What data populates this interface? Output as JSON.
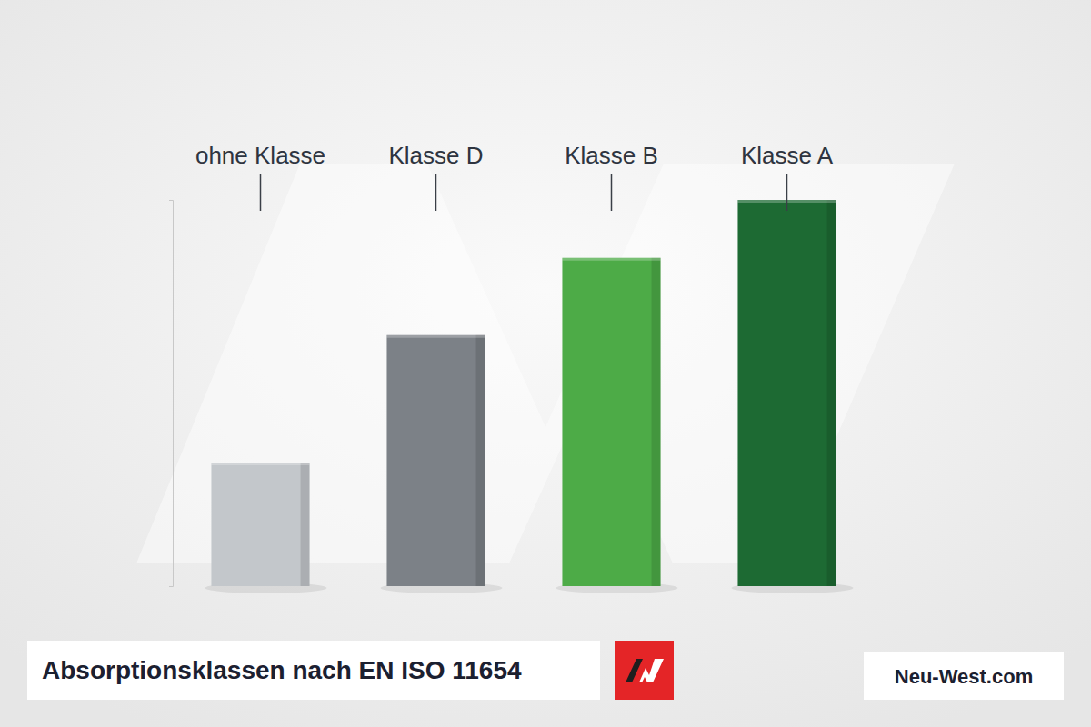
{
  "chart_data": {
    "type": "bar",
    "title": "Absorptionsklassen nach EN ISO 11654",
    "source": "Neu-West.com",
    "categories": [
      "ohne Klasse",
      "Klasse D",
      "Klasse B",
      "Klasse A"
    ],
    "values": [
      0.32,
      0.65,
      0.85,
      1.0
    ],
    "colors": [
      "#c3c7cb",
      "#7c8187",
      "#4dab47",
      "#1d6a33"
    ],
    "ylim": [
      0,
      1.0
    ],
    "yticks": [
      0,
      1.0
    ],
    "tick_labels": "x",
    "grid": false,
    "data_labels": false
  }
}
